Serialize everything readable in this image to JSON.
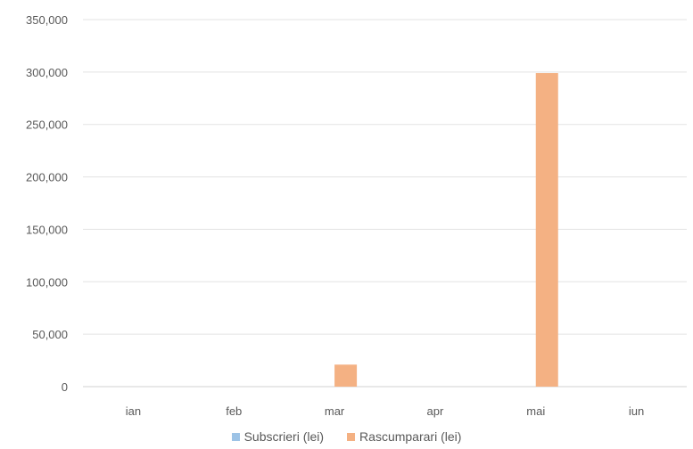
{
  "chart_data": {
    "type": "bar",
    "categories": [
      "ian",
      "feb",
      "mar",
      "apr",
      "mai",
      "iun"
    ],
    "series": [
      {
        "name": "Subscrieri (lei)",
        "values": [
          0,
          0,
          0,
          0,
          0,
          0
        ],
        "color": "#9DC3E6"
      },
      {
        "name": "Rascumparari (lei)",
        "values": [
          0,
          0,
          21000,
          0,
          299000,
          0
        ],
        "color": "#F4B183"
      }
    ],
    "y_ticks": [
      "350,000",
      "300,000",
      "250,000",
      "200,000",
      "150,000",
      "100,000",
      "50,000",
      "0"
    ],
    "ylim": [
      0,
      350000
    ],
    "grid": true,
    "legend_position": "bottom"
  }
}
